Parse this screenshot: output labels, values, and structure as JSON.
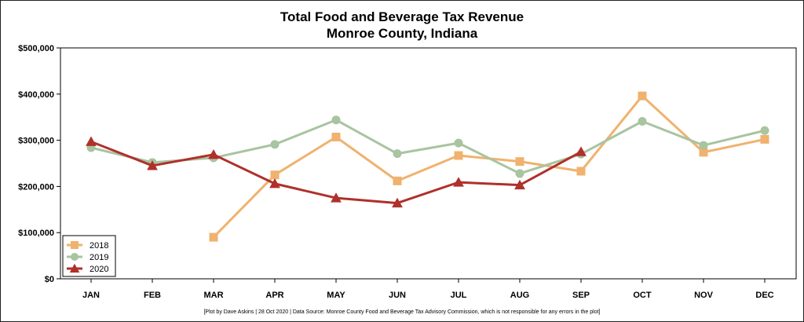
{
  "chart_data": {
    "type": "line",
    "title": "Total Food and Beverage Tax Revenue",
    "subtitle": "Monroe County, Indiana",
    "xlabel": "",
    "ylabel": "",
    "categories": [
      "JAN",
      "FEB",
      "MAR",
      "APR",
      "MAY",
      "JUN",
      "JUL",
      "AUG",
      "SEP",
      "OCT",
      "NOV",
      "DEC"
    ],
    "ylim": [
      0,
      500000
    ],
    "yticks": [
      0,
      100000,
      200000,
      300000,
      400000,
      500000
    ],
    "ytick_labels": [
      "$0",
      "$100,000",
      "$200,000",
      "$300,000",
      "$400,000",
      "$500,000"
    ],
    "grid": false,
    "legend_position": "bottom-left",
    "series": [
      {
        "name": "2018",
        "color": "#f0b26e",
        "marker": "square",
        "values": [
          null,
          null,
          90000,
          225000,
          307000,
          212000,
          267000,
          254000,
          233000,
          396000,
          274000,
          302000
        ]
      },
      {
        "name": "2019",
        "color": "#a8c4a0",
        "marker": "circle",
        "values": [
          284000,
          252000,
          262000,
          291000,
          344000,
          271000,
          294000,
          228000,
          270000,
          341000,
          289000,
          321000
        ]
      },
      {
        "name": "2020",
        "color": "#b0302a",
        "marker": "triangle",
        "values": [
          297000,
          245000,
          269000,
          206000,
          175000,
          164000,
          209000,
          203000,
          275000,
          null,
          null,
          null
        ]
      }
    ],
    "footnote": "[Plot by Dave Askins | 28 Oct 2020 | Data Source: Monroe County Food and Beverage Tax Advisory Commission, which is not responsible for any errors in the plot]"
  }
}
